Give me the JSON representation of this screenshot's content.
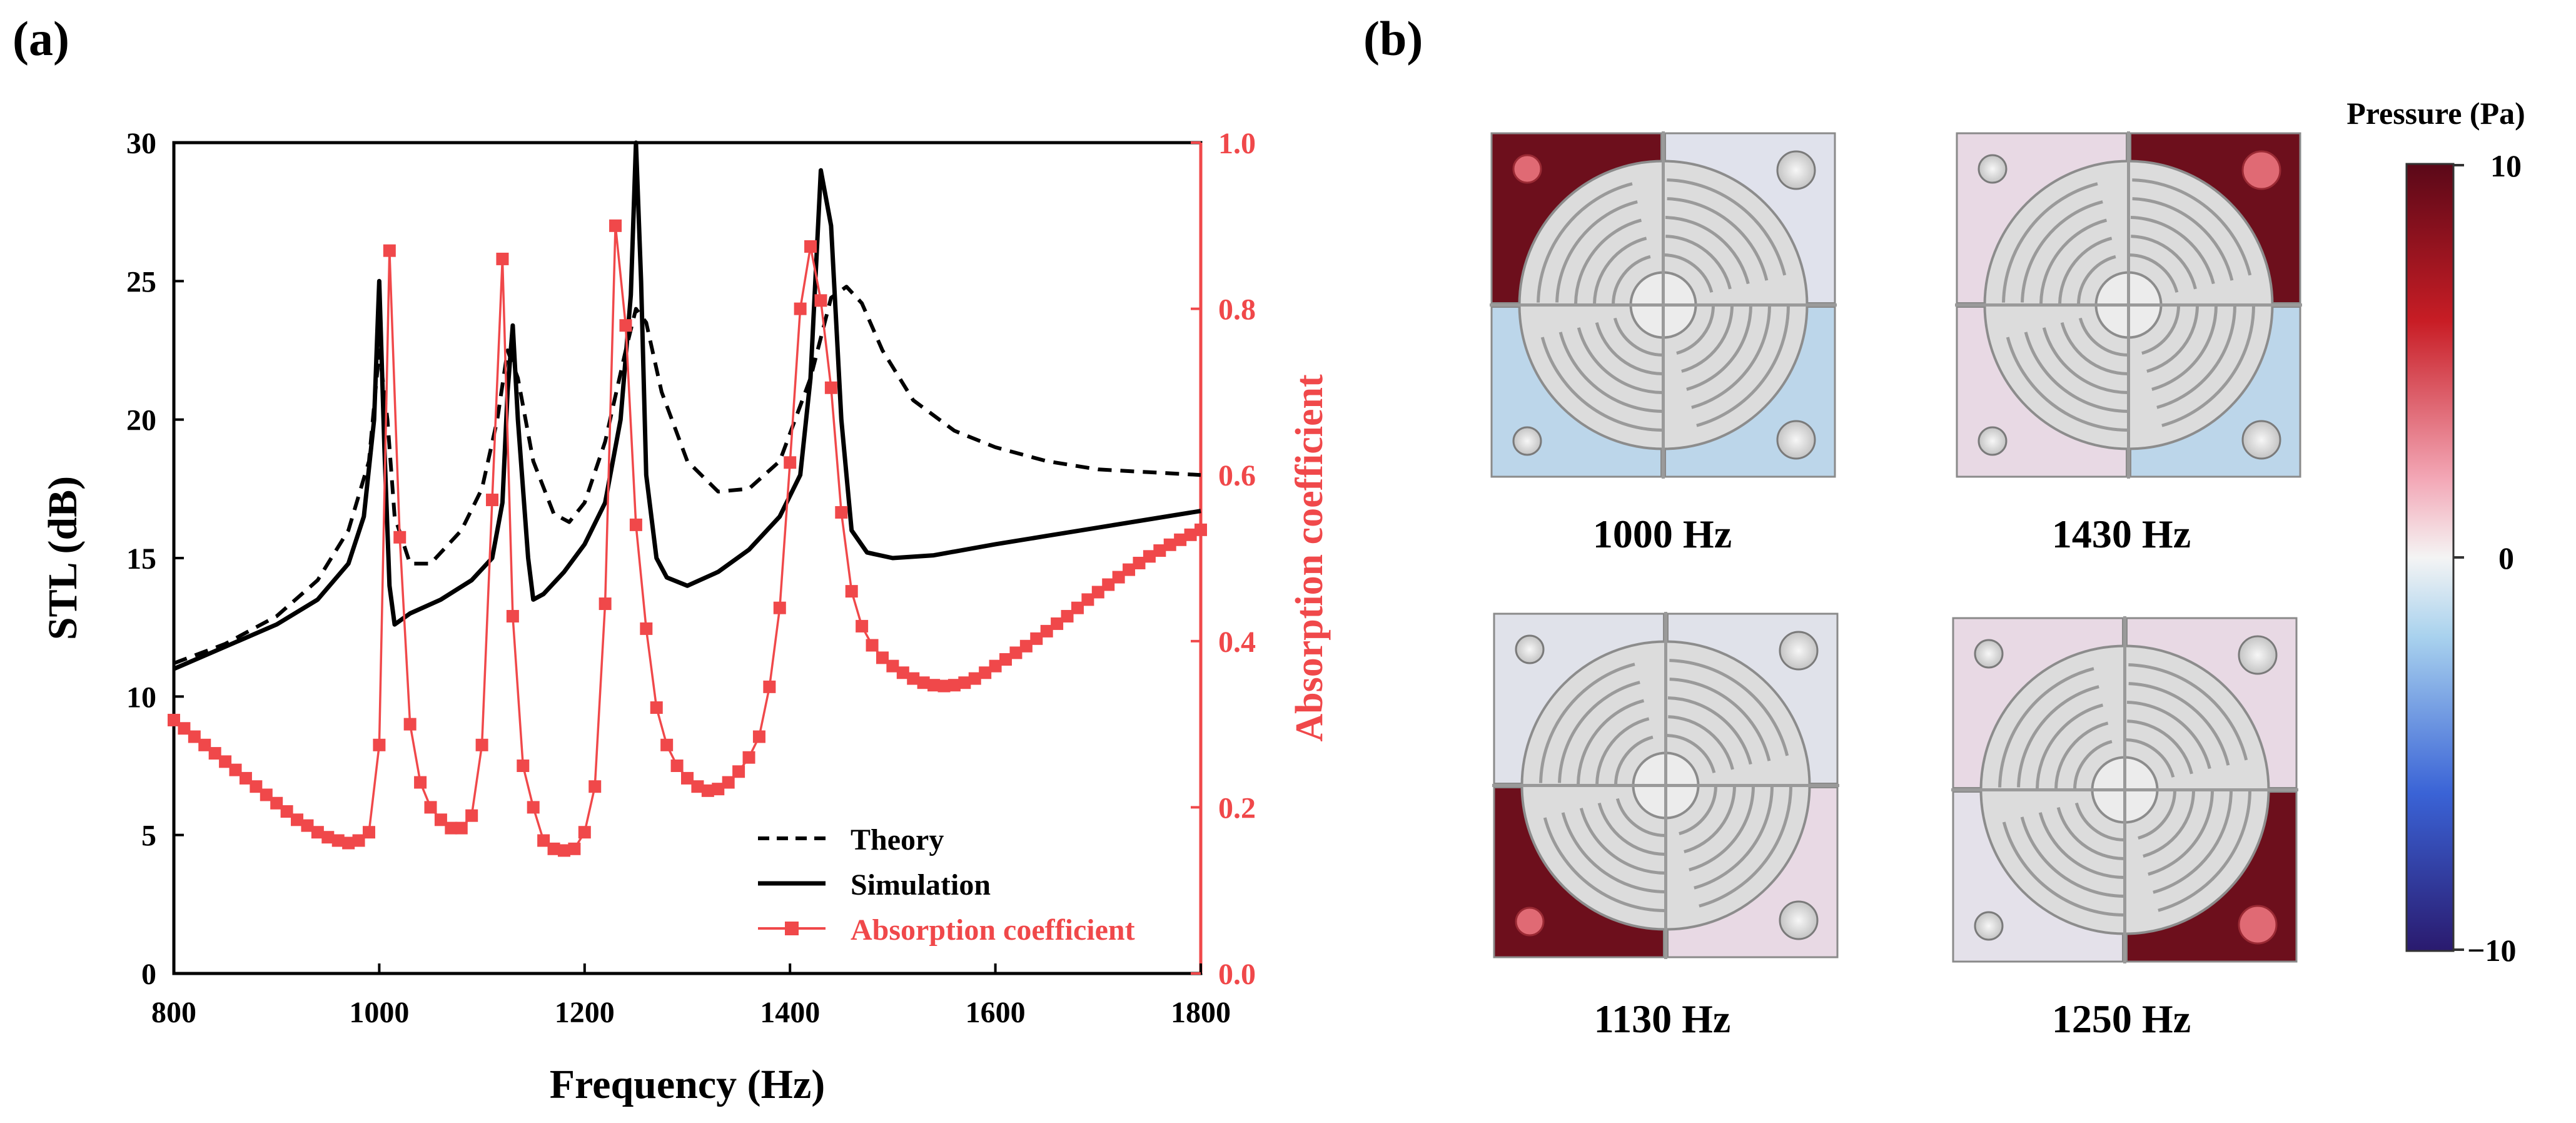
{
  "panel_a_label": "(a)",
  "panel_b_label": "(b)",
  "colors": {
    "axis": "#000000",
    "absorption": "#f0484a",
    "theory": "#000000",
    "simulation": "#000000",
    "colorbar_top": "#6a0d1a",
    "colorbar_mid": "#f2f2f2",
    "colorbar_bottom": "#2a1a7a"
  },
  "chart_data": {
    "type": "line",
    "title": "",
    "xlabel": "Frequency (Hz)",
    "ylabel": "STL (dB)",
    "y2label": "Absorption coefficient",
    "xlim": [
      800,
      1800
    ],
    "ylim": [
      0,
      30
    ],
    "y2lim": [
      0,
      1.0
    ],
    "xticks": [
      800,
      1000,
      1200,
      1400,
      1600,
      1800
    ],
    "xtick_labels": [
      "800",
      "1000",
      "1200",
      "1400",
      "1600",
      "1800"
    ],
    "yticks": [
      0,
      5,
      10,
      15,
      20,
      25,
      30
    ],
    "ytick_labels": [
      "0",
      "5",
      "10",
      "15",
      "20",
      "25",
      "30"
    ],
    "y2ticks": [
      0,
      0.2,
      0.4,
      0.6,
      0.8,
      1.0
    ],
    "y2tick_labels": [
      "0.0",
      "0.2",
      "0.4",
      "0.6",
      "0.8",
      "1.0"
    ],
    "legend_position": "bottom-right",
    "legend": [
      "Theory",
      "Simulation",
      "Absorption coefficient"
    ],
    "series": [
      {
        "name": "Theory",
        "axis": "left",
        "style": "dashed",
        "x": [
          800,
          850,
          900,
          940,
          970,
          990,
          1000,
          1008,
          1015,
          1030,
          1050,
          1080,
          1100,
          1115,
          1125,
          1135,
          1150,
          1170,
          1185,
          1200,
          1220,
          1240,
          1250,
          1260,
          1275,
          1300,
          1330,
          1360,
          1390,
          1420,
          1440,
          1455,
          1470,
          1490,
          1520,
          1560,
          1600,
          1650,
          1700,
          1750,
          1800
        ],
        "y": [
          11.2,
          11.9,
          12.9,
          14.2,
          16.0,
          18.5,
          22.5,
          20.0,
          16.5,
          14.8,
          14.8,
          16.0,
          17.5,
          20.0,
          22.5,
          21.5,
          18.5,
          16.6,
          16.3,
          17.0,
          19.2,
          22.5,
          24.0,
          23.5,
          21.0,
          18.5,
          17.4,
          17.5,
          18.5,
          21.5,
          24.4,
          24.8,
          24.2,
          22.5,
          20.7,
          19.6,
          19.0,
          18.5,
          18.2,
          18.1,
          18.0
        ]
      },
      {
        "name": "Simulation",
        "axis": "left",
        "style": "solid",
        "x": [
          800,
          850,
          900,
          940,
          970,
          985,
          995,
          1000,
          1005,
          1010,
          1015,
          1030,
          1060,
          1090,
          1110,
          1120,
          1125,
          1130,
          1135,
          1145,
          1150,
          1160,
          1180,
          1200,
          1220,
          1235,
          1245,
          1250,
          1255,
          1260,
          1270,
          1280,
          1300,
          1330,
          1360,
          1390,
          1410,
          1420,
          1430,
          1440,
          1450,
          1460,
          1475,
          1500,
          1540,
          1600,
          1650,
          1700,
          1750,
          1800
        ],
        "y": [
          11.0,
          11.8,
          12.6,
          13.5,
          14.8,
          16.5,
          20.0,
          25.0,
          19.0,
          14.0,
          12.6,
          13.0,
          13.5,
          14.2,
          15.0,
          17.0,
          21.0,
          23.4,
          20.0,
          15.0,
          13.5,
          13.7,
          14.5,
          15.5,
          17.0,
          20.0,
          24.5,
          30.0,
          25.0,
          18.0,
          15.0,
          14.3,
          14.0,
          14.5,
          15.3,
          16.5,
          18.0,
          21.5,
          29.0,
          27.0,
          20.0,
          16.0,
          15.2,
          15.0,
          15.1,
          15.5,
          15.8,
          16.1,
          16.4,
          16.7
        ]
      },
      {
        "name": "Absorption coefficient",
        "axis": "right",
        "style": "solid-square-markers",
        "x": [
          800,
          810,
          820,
          830,
          840,
          850,
          860,
          870,
          880,
          890,
          900,
          910,
          920,
          930,
          940,
          950,
          960,
          970,
          980,
          990,
          1000,
          1010,
          1020,
          1030,
          1040,
          1050,
          1060,
          1070,
          1080,
          1090,
          1100,
          1110,
          1120,
          1130,
          1140,
          1150,
          1160,
          1170,
          1180,
          1190,
          1200,
          1210,
          1220,
          1230,
          1240,
          1250,
          1260,
          1270,
          1280,
          1290,
          1300,
          1310,
          1320,
          1330,
          1340,
          1350,
          1360,
          1370,
          1380,
          1390,
          1400,
          1410,
          1420,
          1430,
          1440,
          1450,
          1460,
          1470,
          1480,
          1490,
          1500,
          1510,
          1520,
          1530,
          1540,
          1550,
          1560,
          1570,
          1580,
          1590,
          1600,
          1610,
          1620,
          1630,
          1640,
          1650,
          1660,
          1670,
          1680,
          1690,
          1700,
          1710,
          1720,
          1730,
          1740,
          1750,
          1760,
          1770,
          1780,
          1790,
          1800
        ],
        "y": [
          0.305,
          0.295,
          0.285,
          0.275,
          0.265,
          0.255,
          0.245,
          0.235,
          0.225,
          0.215,
          0.205,
          0.195,
          0.185,
          0.178,
          0.17,
          0.164,
          0.16,
          0.157,
          0.16,
          0.17,
          0.275,
          0.87,
          0.525,
          0.3,
          0.23,
          0.2,
          0.185,
          0.175,
          0.175,
          0.19,
          0.275,
          0.57,
          0.86,
          0.43,
          0.25,
          0.2,
          0.16,
          0.15,
          0.148,
          0.15,
          0.17,
          0.225,
          0.445,
          0.9,
          0.78,
          0.54,
          0.415,
          0.32,
          0.275,
          0.25,
          0.235,
          0.225,
          0.22,
          0.222,
          0.23,
          0.243,
          0.26,
          0.285,
          0.345,
          0.44,
          0.615,
          0.8,
          0.875,
          0.81,
          0.705,
          0.555,
          0.46,
          0.418,
          0.395,
          0.38,
          0.37,
          0.362,
          0.355,
          0.35,
          0.347,
          0.346,
          0.347,
          0.35,
          0.355,
          0.362,
          0.37,
          0.378,
          0.386,
          0.394,
          0.403,
          0.412,
          0.421,
          0.43,
          0.44,
          0.45,
          0.459,
          0.468,
          0.477,
          0.486,
          0.494,
          0.502,
          0.509,
          0.516,
          0.522,
          0.528,
          0.534
        ]
      }
    ]
  },
  "fields": [
    {
      "label": "1000 Hz",
      "red": "tl",
      "blue": [
        "bl",
        "br"
      ],
      "pink": [],
      "tint": "#e0e2ec"
    },
    {
      "label": "1430 Hz",
      "red": "tr",
      "blue": [
        "br"
      ],
      "pink": [
        "tl",
        "bl"
      ],
      "tint": "#e6e0ec"
    },
    {
      "label": "1130 Hz",
      "red": "bl",
      "blue": [],
      "pink": [
        "br"
      ],
      "tint": "#e0e2ea"
    },
    {
      "label": "1250 Hz",
      "red": "br",
      "blue": [],
      "pink": [
        "tr",
        "tl"
      ],
      "tint": "#e4e1ea"
    }
  ],
  "colorbar": {
    "title": "Pressure (Pa)",
    "ticks": [
      "10",
      "0",
      "−10"
    ]
  }
}
